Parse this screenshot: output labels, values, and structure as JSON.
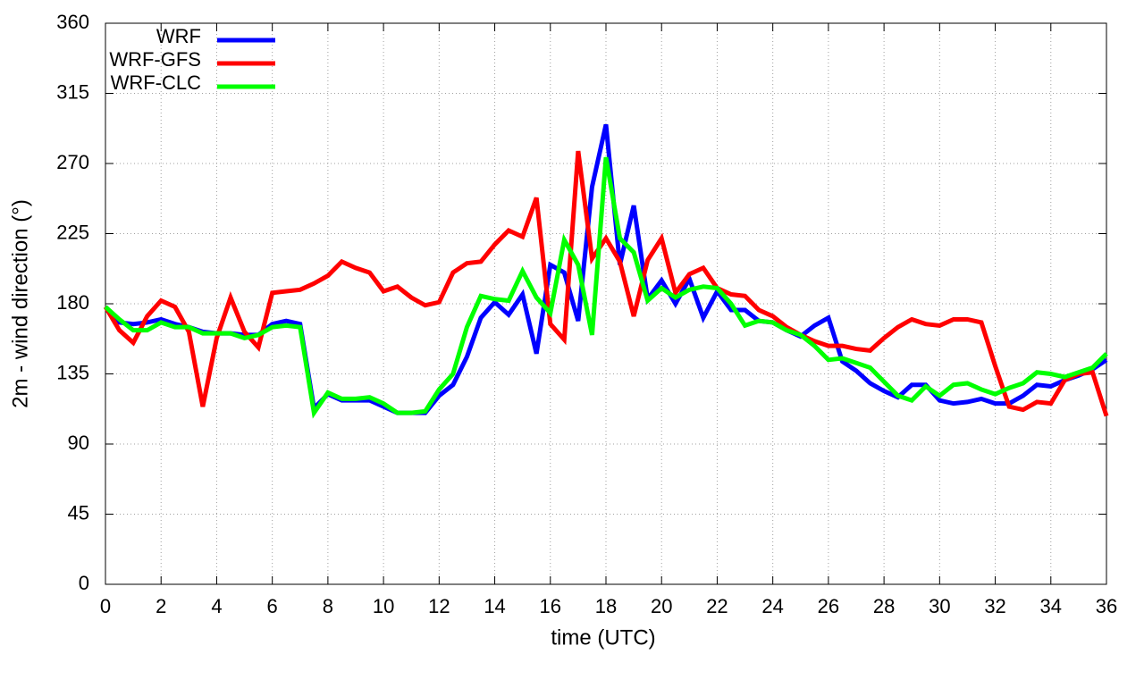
{
  "chart_data": {
    "type": "line",
    "xlabel": "time (UTC)",
    "ylabel": "2m - wind direction (°)",
    "x": [
      0,
      0.5,
      1,
      1.5,
      2,
      2.5,
      3,
      3.5,
      4,
      4.5,
      5,
      5.5,
      6,
      6.5,
      7,
      7.5,
      8,
      8.5,
      9,
      9.5,
      10,
      10.5,
      11,
      11.5,
      12,
      12.5,
      13,
      13.5,
      14,
      14.5,
      15,
      15.5,
      16,
      16.5,
      17,
      17.5,
      18,
      18.5,
      19,
      19.5,
      20,
      20.5,
      21,
      21.5,
      22,
      22.5,
      23,
      23.5,
      24,
      24.5,
      25,
      25.5,
      26,
      26.5,
      27,
      27.5,
      28,
      28.5,
      29,
      29.5,
      30,
      30.5,
      31,
      31.5,
      32,
      32.5,
      33,
      33.5,
      34,
      34.5,
      35,
      35.5,
      36
    ],
    "series": [
      {
        "name": "WRF",
        "color": "#0000ff",
        "values": [
          178,
          168,
          167,
          168,
          170,
          167,
          165,
          162,
          161,
          161,
          160,
          160,
          167,
          169,
          167,
          113,
          122,
          118,
          118,
          118,
          114,
          110,
          110,
          110,
          121,
          128,
          146,
          171,
          181,
          173,
          186,
          148,
          205,
          200,
          169,
          255,
          295,
          205,
          243,
          183,
          195,
          180,
          196,
          171,
          188,
          176,
          176,
          169,
          168,
          163,
          159,
          166,
          171,
          143,
          137,
          129,
          124,
          120,
          128,
          128,
          118,
          116,
          117,
          119,
          116,
          116,
          121,
          128,
          127,
          131,
          134,
          138,
          144
        ]
      },
      {
        "name": "WRF-GFS",
        "color": "#ff0000",
        "values": [
          178,
          163,
          155,
          172,
          182,
          178,
          162,
          114,
          158,
          184,
          162,
          152,
          187,
          188,
          189,
          193,
          198,
          207,
          203,
          200,
          188,
          191,
          184,
          179,
          181,
          200,
          206,
          207,
          218,
          227,
          223,
          248,
          167,
          157,
          278,
          209,
          222,
          207,
          172,
          208,
          222,
          187,
          199,
          203,
          190,
          186,
          185,
          176,
          172,
          165,
          160,
          156,
          153,
          153,
          151,
          150,
          158,
          165,
          170,
          167,
          166,
          170,
          170,
          168,
          140,
          114,
          112,
          117,
          116,
          131,
          135,
          136,
          108
        ]
      },
      {
        "name": "WRF-CLC",
        "color": "#00ff00",
        "values": [
          178,
          170,
          163,
          163,
          168,
          165,
          165,
          161,
          161,
          161,
          158,
          160,
          165,
          166,
          165,
          110,
          123,
          119,
          119,
          120,
          116,
          110,
          110,
          111,
          125,
          135,
          165,
          185,
          183,
          182,
          201,
          184,
          174,
          221,
          205,
          160,
          274,
          222,
          213,
          182,
          190,
          184,
          189,
          191,
          190,
          180,
          166,
          169,
          168,
          163,
          160,
          153,
          144,
          145,
          142,
          139,
          130,
          121,
          118,
          127,
          121,
          128,
          129,
          125,
          122,
          126,
          129,
          136,
          135,
          133,
          136,
          139,
          148
        ]
      }
    ],
    "xlim": [
      0,
      36
    ],
    "xticks": [
      0,
      2,
      4,
      6,
      8,
      10,
      12,
      14,
      16,
      18,
      20,
      22,
      24,
      26,
      28,
      30,
      32,
      34,
      36
    ],
    "ylim": [
      0,
      360
    ],
    "yticks": [
      0,
      45,
      90,
      135,
      180,
      225,
      270,
      315,
      360
    ],
    "grid": true,
    "legend": "top-left"
  }
}
